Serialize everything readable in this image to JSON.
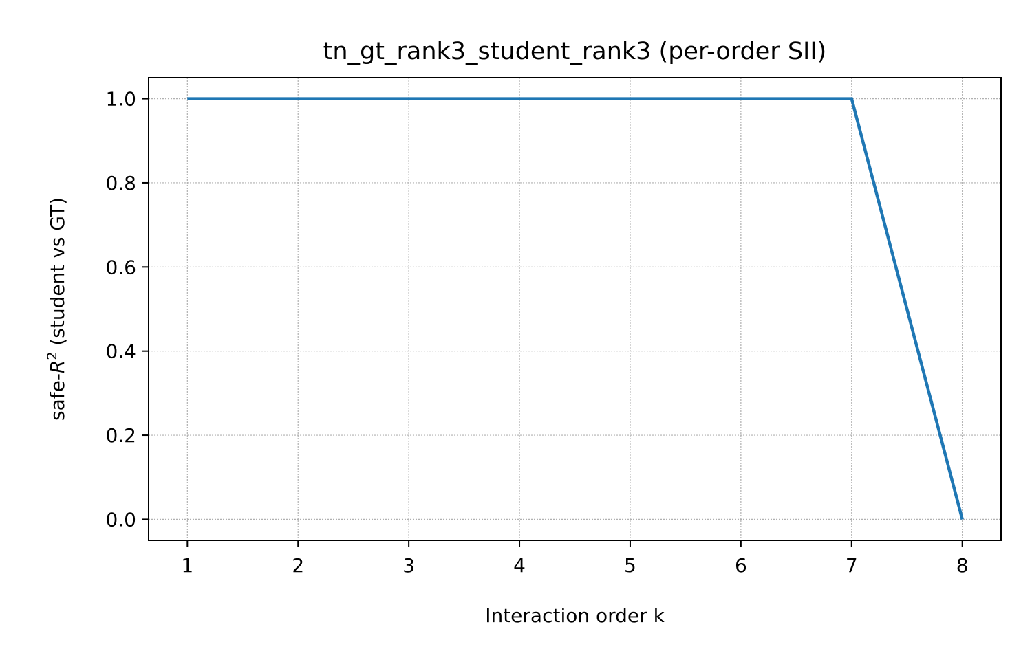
{
  "chart_data": {
    "type": "line",
    "title": "tn_gt_rank3_student_rank3 (per-order SII)",
    "xlabel": "Interaction order k",
    "ylabel_prefix": "safe-",
    "ylabel_var": "R",
    "ylabel_sup": "2",
    "ylabel_suffix": " (student vs GT)",
    "x": [
      1,
      2,
      3,
      4,
      5,
      6,
      7,
      8
    ],
    "series": [
      {
        "values": [
          1.0,
          1.0,
          1.0,
          1.0,
          1.0,
          1.0,
          1.0,
          0.0
        ],
        "color": "#1f77b4"
      }
    ],
    "xlim": [
      0.65,
      8.35
    ],
    "ylim": [
      -0.05,
      1.05
    ],
    "xticks": [
      1,
      2,
      3,
      4,
      5,
      6,
      7,
      8
    ],
    "xtick_labels": [
      "1",
      "2",
      "3",
      "4",
      "5",
      "6",
      "7",
      "8"
    ],
    "yticks": [
      0.0,
      0.2,
      0.4,
      0.6,
      0.8,
      1.0
    ],
    "ytick_labels": [
      "0.0",
      "0.2",
      "0.4",
      "0.6",
      "0.8",
      "1.0"
    ],
    "grid": true,
    "legend": "none"
  }
}
